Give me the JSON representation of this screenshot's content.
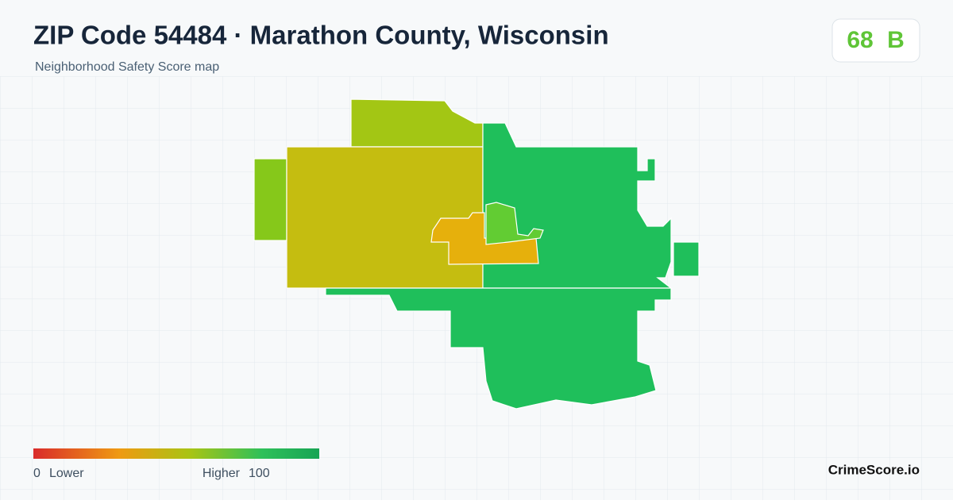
{
  "header": {
    "title": "ZIP Code 54484 · Marathon County, Wisconsin",
    "subtitle": "Neighborhood Safety Score map"
  },
  "score": {
    "value": 68,
    "grade": "B"
  },
  "legend": {
    "min": 0,
    "min_label": "Lower",
    "max_label": "Higher",
    "max": 100
  },
  "brand": "CrimeScore.io"
}
